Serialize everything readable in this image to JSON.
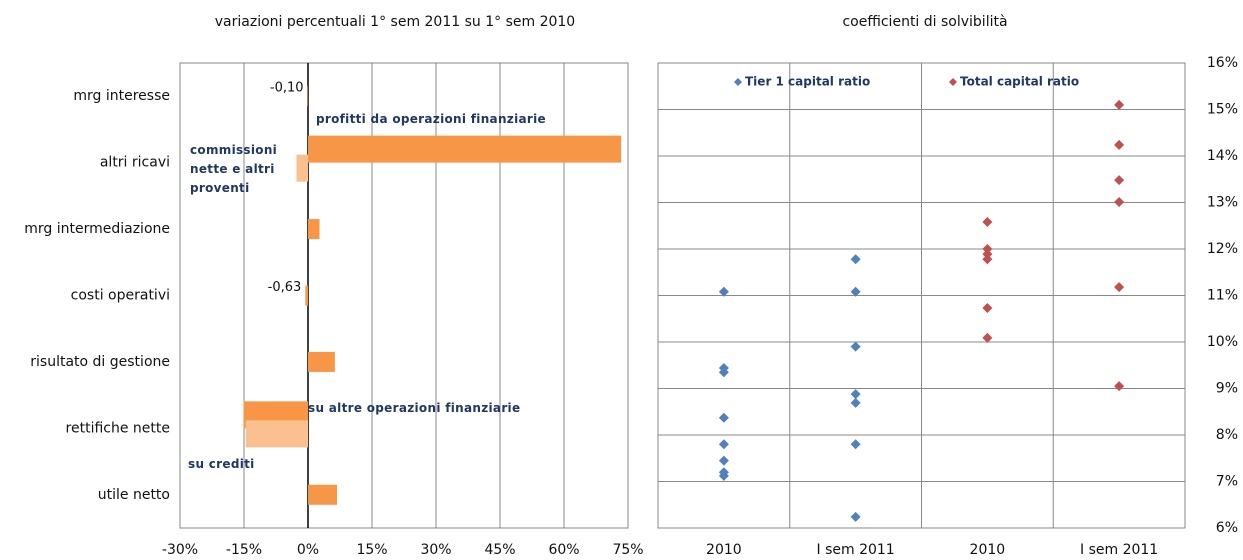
{
  "chart_data": [
    {
      "type": "hbar",
      "title": "variazioni percentuali 1° sem 2011 su 1° sem 2010",
      "categories": [
        "mrg interesse",
        "altri ricavi",
        "mrg intermediazione",
        "costi operativi",
        "risultato di gestione",
        "rettifiche nette",
        "utile netto"
      ],
      "series": [
        {
          "color": "#f79646",
          "values": [
            -0.1,
            73.4,
            2.7,
            -0.63,
            6.3,
            -15.1,
            6.8
          ],
          "value_labels": [
            "-0,10",
            null,
            null,
            "-0,63",
            null,
            null,
            null
          ]
        },
        {
          "color": "#fac090",
          "values": [
            null,
            -2.7,
            null,
            null,
            null,
            -14.6,
            null
          ]
        }
      ],
      "annotations": [
        "profitti da operazioni finanziarie",
        "commissioni nette e altri proventi",
        "su altre operazioni finanziarie",
        "su crediti"
      ],
      "xlim": [
        -30,
        75
      ],
      "xticks": [
        {
          "value": -30,
          "label": "-30%"
        },
        {
          "value": -15,
          "label": "-15%"
        },
        {
          "value": 0,
          "label": "0%"
        },
        {
          "value": 15,
          "label": "15%"
        },
        {
          "value": 30,
          "label": "30%"
        },
        {
          "value": 45,
          "label": "45%"
        },
        {
          "value": 60,
          "label": "60%"
        },
        {
          "value": 75,
          "label": "75%"
        }
      ],
      "grid": true
    },
    {
      "type": "scatter",
      "title": "coefficienti di solvibilità",
      "categories": [
        "2010",
        "I sem 2011",
        "2010",
        "I sem 2011"
      ],
      "series": [
        {
          "name": "Tier 1 capital ratio",
          "color": "#4f81bd",
          "values": [
            [
              11.08,
              9.44,
              9.35,
              8.37,
              7.8,
              7.45,
              7.2,
              7.12
            ],
            [
              11.78,
              11.08,
              9.9,
              8.88,
              8.69,
              7.8,
              6.24
            ],
            [],
            []
          ]
        },
        {
          "name": "Total capital ratio",
          "color": "#c0504d",
          "values": [
            [],
            [],
            [
              12.58,
              12.0,
              11.89,
              11.78,
              10.73,
              10.09
            ],
            [
              15.1,
              14.24,
              13.48,
              13.01,
              11.18,
              9.05
            ]
          ]
        }
      ],
      "ylim": [
        6,
        16
      ],
      "yticks": [
        {
          "value": 6,
          "label": "6%"
        },
        {
          "value": 7,
          "label": "7%"
        },
        {
          "value": 8,
          "label": "8%"
        },
        {
          "value": 9,
          "label": "9%"
        },
        {
          "value": 10,
          "label": "10%"
        },
        {
          "value": 11,
          "label": "11%"
        },
        {
          "value": 12,
          "label": "12%"
        },
        {
          "value": 13,
          "label": "13%"
        },
        {
          "value": 14,
          "label": "14%"
        },
        {
          "value": 15,
          "label": "15%"
        },
        {
          "value": 16,
          "label": "16%"
        }
      ],
      "grid": true,
      "legend": "top"
    }
  ]
}
